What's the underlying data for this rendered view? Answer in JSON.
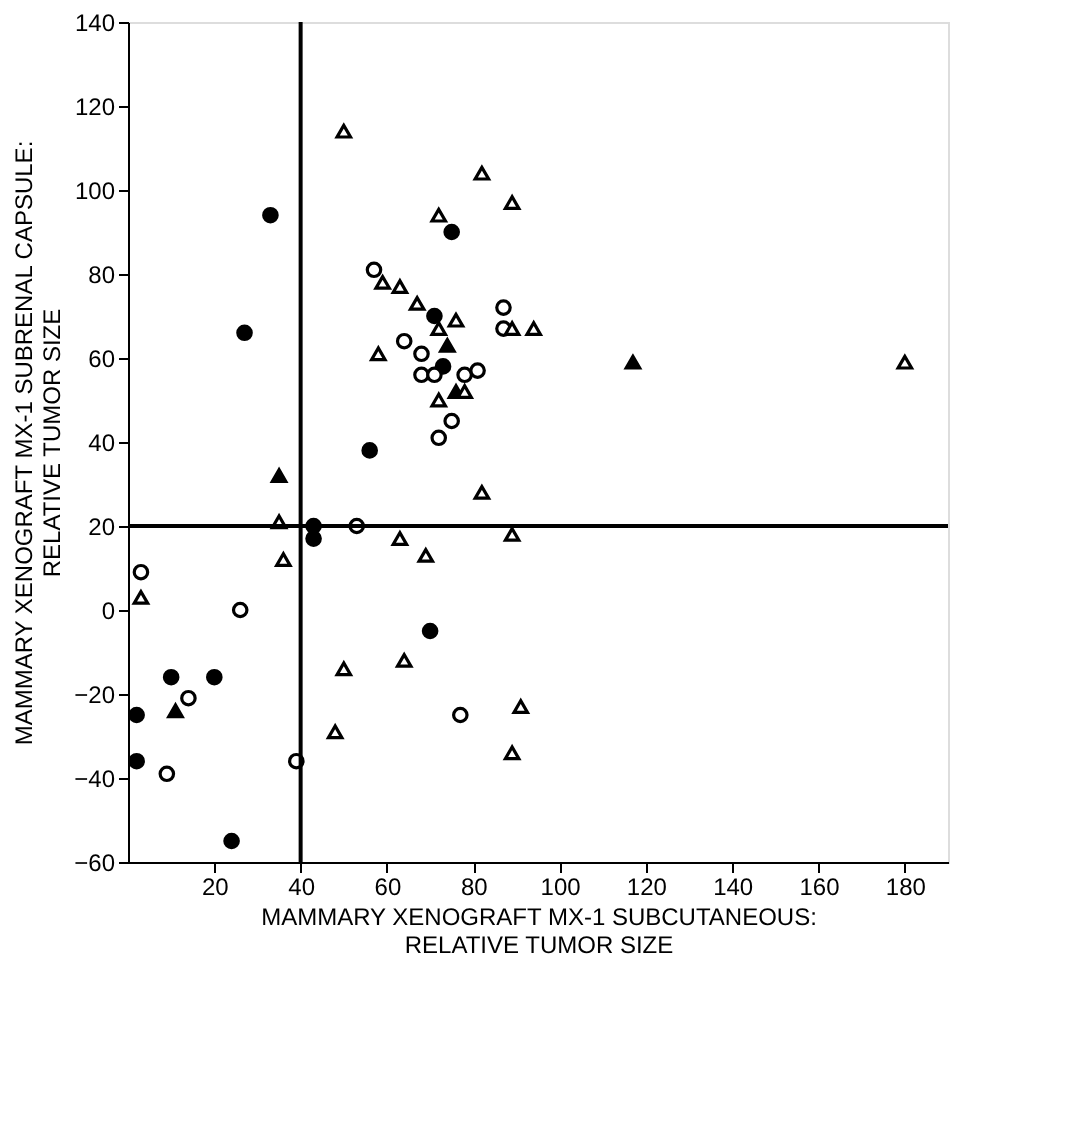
{
  "chart_data": {
    "type": "scatter",
    "xlabel": "MAMMARY XENOGRAFT MX-1 SUBCUTANEOUS:\nRELATIVE TUMOR SIZE",
    "ylabel": "MAMMARY XENOGRAFT MX-1 SUBRENAL CAPSULE:\nRELATIVE TUMOR SIZE",
    "xlim": [
      0,
      190
    ],
    "ylim": [
      -60,
      140
    ],
    "xticks": [
      20,
      40,
      60,
      80,
      100,
      120,
      140,
      160,
      180
    ],
    "yticks": [
      -60,
      -40,
      -20,
      0,
      20,
      40,
      60,
      80,
      100,
      120,
      140
    ],
    "grid": false,
    "legend": false,
    "ref_lines": [
      {
        "axis": "x",
        "value": 40,
        "color": "#000000"
      },
      {
        "axis": "y",
        "value": 20,
        "color": "#000000"
      }
    ],
    "series": [
      {
        "color": "#000000",
        "marker": "circle",
        "x": [
          33,
          75,
          27,
          73,
          71,
          56,
          43,
          43,
          70,
          10,
          20,
          2,
          2,
          24
        ],
        "values": [
          94,
          90,
          66,
          58,
          70,
          38,
          20,
          17,
          -5,
          -16,
          -16,
          -25,
          -36,
          -55
        ]
      },
      {
        "color": "#ffffff",
        "marker": "circle",
        "x": [
          57,
          87,
          87,
          64,
          68,
          68,
          71,
          78,
          81,
          75,
          72,
          53,
          3,
          26,
          14,
          77,
          39,
          9
        ],
        "values": [
          81,
          72,
          67,
          64,
          61,
          56,
          56,
          56,
          57,
          45,
          41,
          20,
          9,
          0,
          -21,
          -25,
          -36,
          -39
        ]
      },
      {
        "color": "#000000",
        "marker": "triangle",
        "x": [
          74,
          76,
          117,
          35,
          11
        ],
        "values": [
          63,
          52,
          59,
          32,
          -24
        ]
      },
      {
        "color": "#ffffff",
        "marker": "triangle",
        "x": [
          50,
          82,
          89,
          72,
          59,
          63,
          67,
          76,
          72,
          89,
          94,
          58,
          78,
          72,
          180,
          82,
          35,
          63,
          69,
          89,
          36,
          3,
          50,
          64,
          91,
          48,
          89
        ],
        "values": [
          114,
          104,
          97,
          94,
          78,
          77,
          73,
          69,
          67,
          67,
          67,
          61,
          52,
          50,
          59,
          28,
          21,
          17,
          13,
          18,
          12,
          3,
          -14,
          -12,
          -23,
          -29,
          -34
        ]
      }
    ]
  }
}
